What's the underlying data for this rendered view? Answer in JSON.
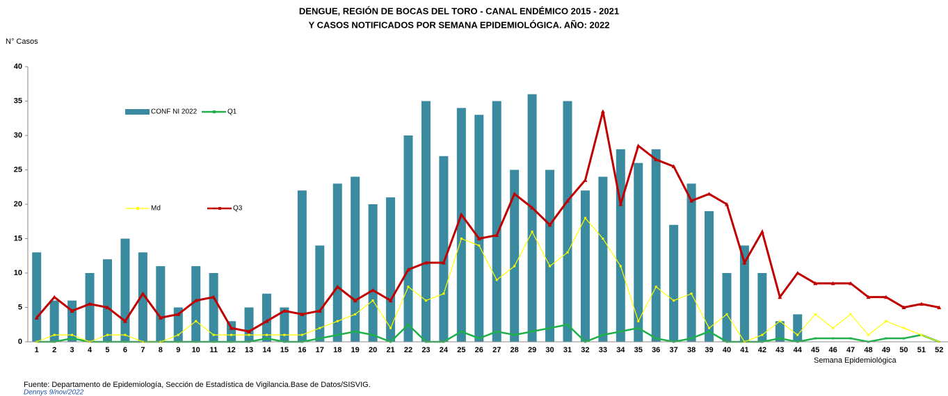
{
  "chart_data": {
    "type": "bar_line",
    "title": "DENGUE, REGIÓN DE BOCAS DEL TORO - CANAL ENDÉMICO 2015 - 2021",
    "subtitle": "Y CASOS NOTIFICADOS POR SEMANA EPIDEMIOLÓGICA. AÑO: 2022",
    "y_label": "N° Casos",
    "x_label": "Semana Epidemiológica",
    "source": "Fuente: Departamento de Epidemiología, Sección de Estadística de Vigilancia.Base de Datos/SISVIG.",
    "author": "Dennys 9/nov/2022",
    "categories": [
      "1",
      "2",
      "3",
      "4",
      "5",
      "6",
      "7",
      "8",
      "9",
      "10",
      "11",
      "12",
      "13",
      "14",
      "15",
      "16",
      "17",
      "18",
      "19",
      "20",
      "21",
      "22",
      "23",
      "24",
      "25",
      "26",
      "27",
      "28",
      "29",
      "30",
      "31",
      "32",
      "33",
      "34",
      "35",
      "36",
      "37",
      "38",
      "39",
      "40",
      "41",
      "42",
      "43",
      "44",
      "45",
      "46",
      "47",
      "48",
      "49",
      "50",
      "51",
      "52"
    ],
    "series": [
      {
        "name": "CONF NI 2022",
        "type": "bar",
        "color": "#3a8aa0",
        "values": [
          13,
          6,
          6,
          10,
          12,
          15,
          13,
          11,
          5,
          11,
          10,
          3,
          5,
          7,
          5,
          22,
          14,
          23,
          24,
          20,
          21,
          30,
          35,
          27,
          34,
          33,
          35,
          25,
          36,
          25,
          35,
          22,
          24,
          28,
          26,
          28,
          17,
          23,
          19,
          10,
          14,
          10,
          3,
          4,
          0,
          0,
          0,
          0,
          0,
          0,
          0,
          0
        ]
      },
      {
        "name": "Q1",
        "type": "line",
        "color": "#1fb04a",
        "values": [
          0,
          0,
          0.5,
          0,
          0,
          0,
          0,
          0,
          0,
          0,
          0,
          0,
          0,
          0.5,
          0,
          0,
          0.5,
          1,
          1.5,
          1,
          0,
          2.5,
          0,
          0,
          1.5,
          0.5,
          1.5,
          1,
          1.5,
          2,
          2.5,
          0,
          1,
          1.5,
          2,
          0.5,
          0,
          0.5,
          1.5,
          0,
          0,
          0,
          0.5,
          0,
          0.5,
          0.5,
          0.5,
          0,
          0.5,
          0.5,
          1,
          0
        ]
      },
      {
        "name": "Md",
        "type": "line",
        "color": "#ffff00",
        "values": [
          0,
          1,
          1,
          0,
          1,
          1,
          0,
          0,
          1,
          3,
          1,
          1,
          1,
          1,
          1,
          1,
          2,
          3,
          4,
          6,
          2,
          8,
          6,
          7,
          15,
          14,
          9,
          11,
          16,
          11,
          13,
          18,
          15,
          11,
          3,
          8,
          6,
          7,
          2,
          4,
          0,
          1,
          3,
          1,
          4,
          2,
          4,
          1,
          3,
          2,
          1,
          0
        ]
      },
      {
        "name": "Q3",
        "type": "line",
        "color": "#c00000",
        "values": [
          3.5,
          6.5,
          4.5,
          5.5,
          5,
          3,
          7,
          3.5,
          4,
          6,
          6.5,
          2,
          1.5,
          3,
          4.5,
          4,
          4.5,
          8,
          6,
          7.5,
          6,
          10.5,
          11.5,
          11.5,
          18.5,
          15,
          15.5,
          21.5,
          19.5,
          17,
          20.5,
          23.5,
          33.5,
          20,
          28.5,
          26.5,
          25.5,
          20.5,
          21.5,
          20,
          11.5,
          16,
          6.5,
          10,
          8.5,
          8.5,
          8.5,
          6.5,
          6.5,
          5,
          5.5,
          5
        ]
      }
    ],
    "ylim": [
      0,
      40
    ],
    "yticks": [
      0,
      5,
      10,
      15,
      20,
      25,
      30,
      35,
      40
    ]
  }
}
